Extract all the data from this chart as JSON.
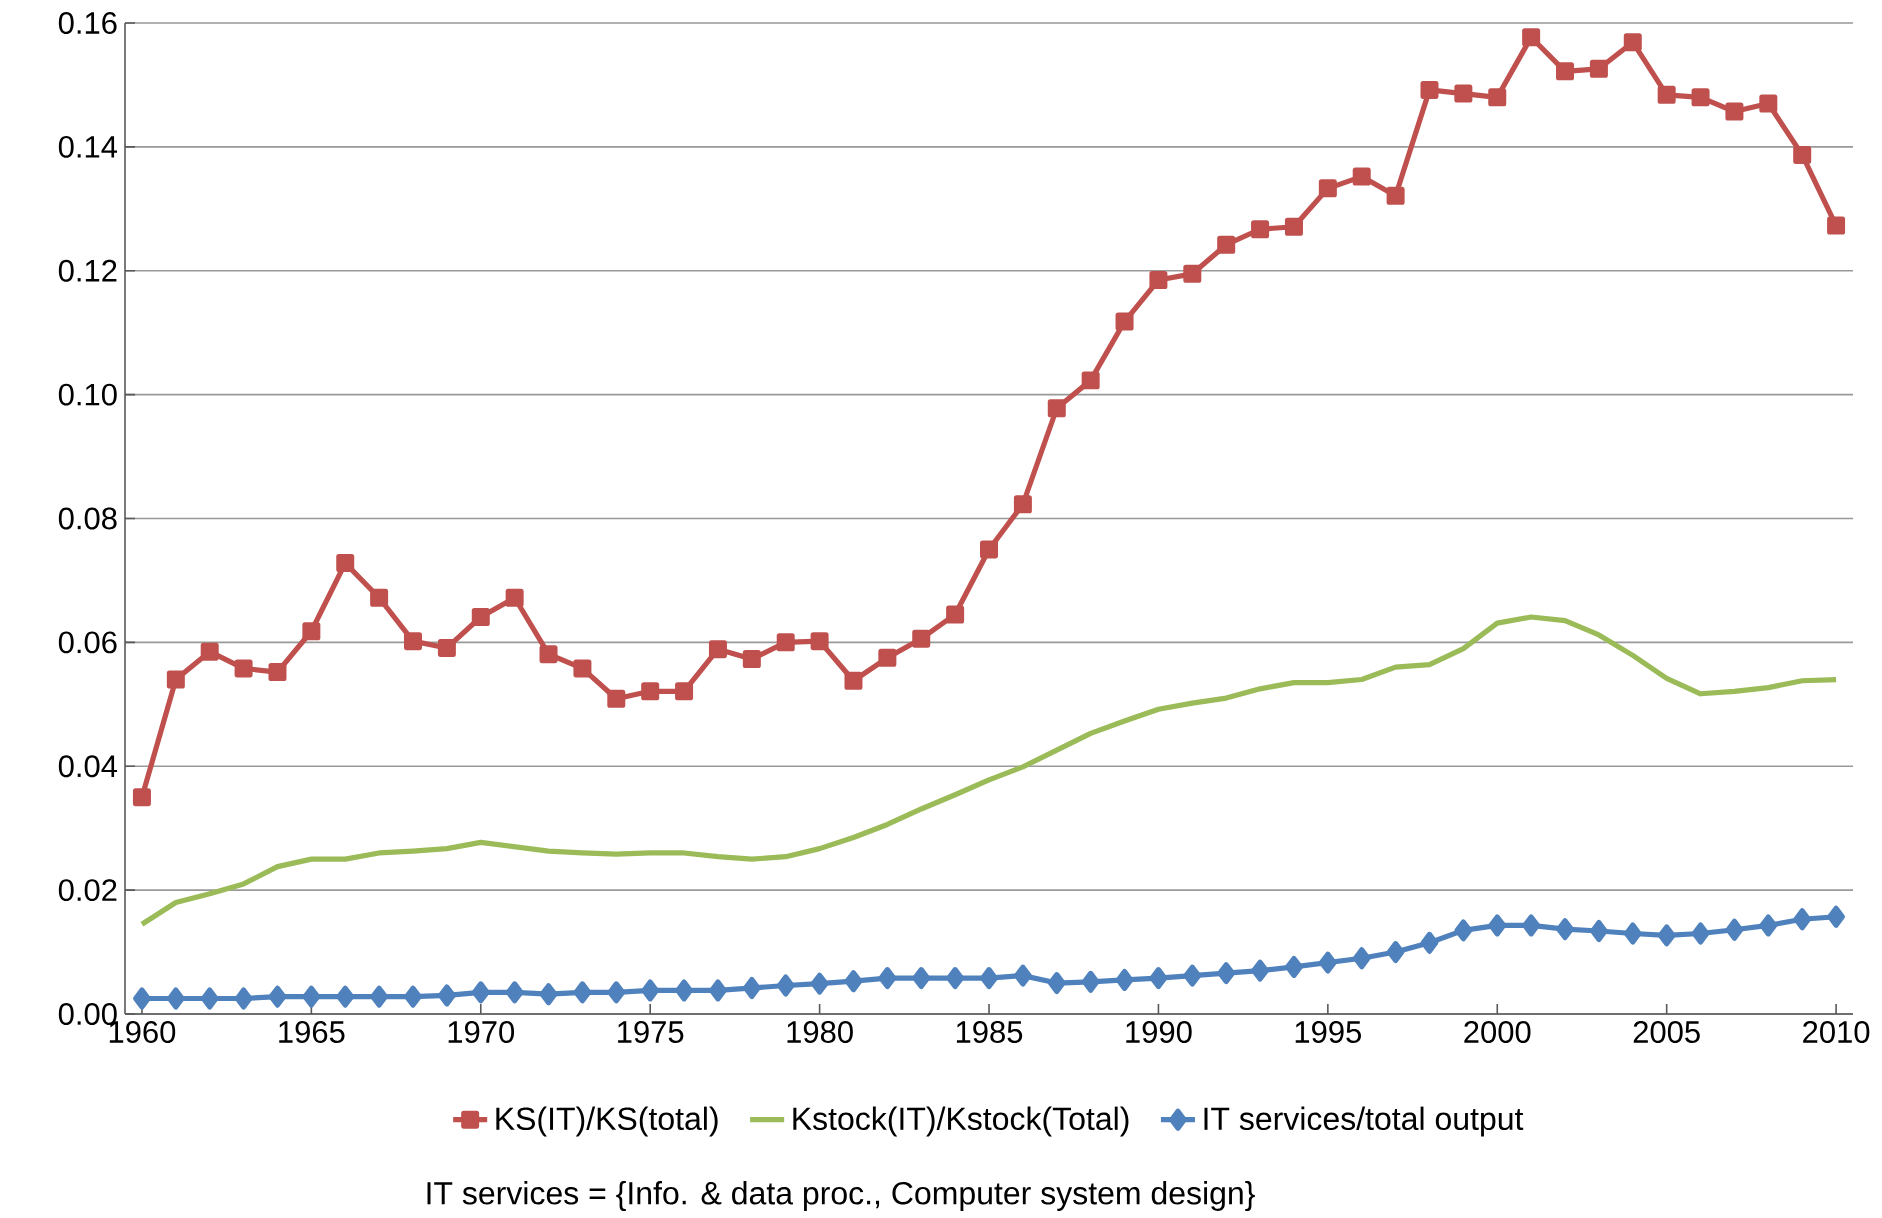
{
  "chart_data": {
    "type": "line",
    "x": [
      1960,
      1961,
      1962,
      1963,
      1964,
      1965,
      1966,
      1967,
      1968,
      1969,
      1970,
      1971,
      1972,
      1973,
      1974,
      1975,
      1976,
      1977,
      1978,
      1979,
      1980,
      1981,
      1982,
      1983,
      1984,
      1985,
      1986,
      1987,
      1988,
      1989,
      1990,
      1991,
      1992,
      1993,
      1994,
      1995,
      1996,
      1997,
      1998,
      1999,
      2000,
      2001,
      2002,
      2003,
      2004,
      2005,
      2006,
      2007,
      2008,
      2009,
      2010
    ],
    "xlim": [
      1959.5,
      2010.5
    ],
    "xticks": [
      1960,
      1965,
      1970,
      1975,
      1980,
      1985,
      1990,
      1995,
      2000,
      2005,
      2010
    ],
    "ylim": [
      0,
      0.16
    ],
    "yticks": [
      {
        "value": 0,
        "label": "0.00"
      },
      {
        "value": 0.02,
        "label": "0.02"
      },
      {
        "value": 0.04,
        "label": "0.04"
      },
      {
        "value": 0.06,
        "label": "0.06"
      },
      {
        "value": 0.08,
        "label": "0.08"
      },
      {
        "value": 0.1,
        "label": "0.10"
      },
      {
        "value": 0.12,
        "label": "0.12"
      },
      {
        "value": 0.14,
        "label": "0.14"
      },
      {
        "value": 0.16,
        "label": "0.16"
      }
    ],
    "grid": "y",
    "legend": "bottom",
    "line_style": "solid",
    "series": [
      {
        "name": "KS(IT)/KS(total)",
        "color": "#c0504d",
        "marker": "square",
        "values": [
          0.035,
          0.054,
          0.0585,
          0.0558,
          0.0552,
          0.0618,
          0.0728,
          0.0672,
          0.0602,
          0.0591,
          0.0641,
          0.0672,
          0.0581,
          0.0558,
          0.0509,
          0.0521,
          0.0521,
          0.0589,
          0.0573,
          0.06,
          0.0602,
          0.0538,
          0.0575,
          0.0606,
          0.0645,
          0.075,
          0.0823,
          0.0978,
          0.1023,
          0.1118,
          0.1185,
          0.1195,
          0.1242,
          0.1267,
          0.1271,
          0.1333,
          0.1352,
          0.1321,
          0.1492,
          0.1486,
          0.148,
          0.1577,
          0.1522,
          0.1526,
          0.1569,
          0.1484,
          0.148,
          0.1457,
          0.147,
          0.1387,
          0.1273
        ]
      },
      {
        "name": "Kstock(IT)/Kstock(Total)",
        "color": "#9bbb59",
        "marker": "none",
        "values": [
          0.0145,
          0.018,
          0.0194,
          0.021,
          0.0238,
          0.025,
          0.025,
          0.026,
          0.0263,
          0.0267,
          0.0277,
          0.027,
          0.0263,
          0.026,
          0.0258,
          0.026,
          0.026,
          0.0254,
          0.025,
          0.0254,
          0.0267,
          0.0285,
          0.0306,
          0.0331,
          0.0354,
          0.0378,
          0.0399,
          0.0426,
          0.0453,
          0.0473,
          0.0492,
          0.0502,
          0.051,
          0.0525,
          0.0535,
          0.0535,
          0.054,
          0.056,
          0.0564,
          0.059,
          0.0631,
          0.0641,
          0.0635,
          0.0612,
          0.0579,
          0.0542,
          0.0517,
          0.0521,
          0.0527,
          0.0538,
          0.054
        ]
      },
      {
        "name": "IT services/total output",
        "color": "#4f81bd",
        "marker": "diamond",
        "values": [
          0.0025,
          0.0025,
          0.0025,
          0.0025,
          0.0028,
          0.0028,
          0.0028,
          0.0028,
          0.0028,
          0.003,
          0.0035,
          0.0035,
          0.0032,
          0.0035,
          0.0035,
          0.0038,
          0.0038,
          0.0038,
          0.0042,
          0.0046,
          0.0049,
          0.0053,
          0.0058,
          0.0058,
          0.0058,
          0.0058,
          0.0062,
          0.005,
          0.0052,
          0.0055,
          0.0058,
          0.0062,
          0.0066,
          0.007,
          0.0076,
          0.0083,
          0.009,
          0.01,
          0.0115,
          0.0135,
          0.0143,
          0.0143,
          0.0137,
          0.0134,
          0.013,
          0.0127,
          0.013,
          0.0136,
          0.0143,
          0.0153,
          0.0157
        ]
      }
    ],
    "annotations": [
      "IT services = {Info. & data proc., Computer system design}"
    ]
  }
}
